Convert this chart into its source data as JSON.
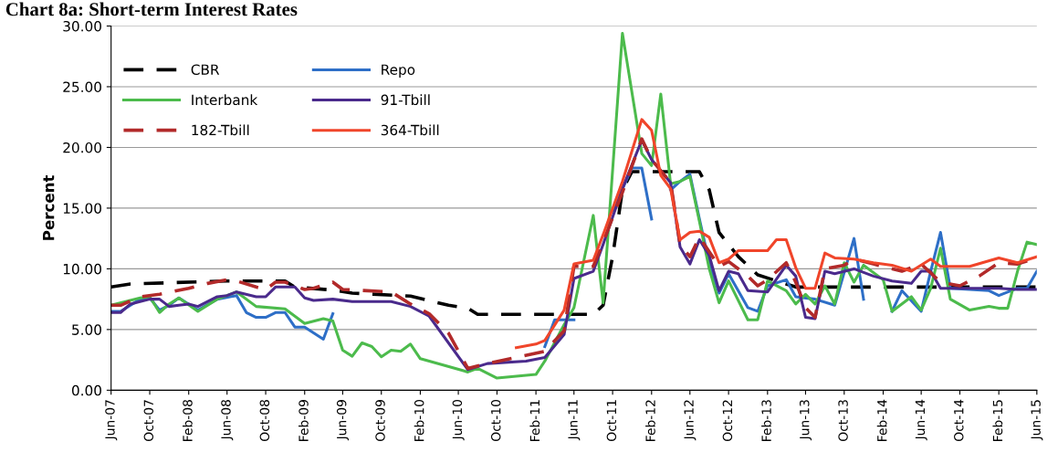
{
  "chart_data": {
    "type": "line",
    "title": "Chart 8a: Short-term Interest Rates",
    "ylabel": "Percent",
    "xlim": [
      "2007-06",
      "2015-06"
    ],
    "xticks": [
      {
        "value": "2007-06",
        "label": "Jun-07"
      },
      {
        "value": "2007-10",
        "label": "Oct-07"
      },
      {
        "value": "2008-02",
        "label": "Feb-08"
      },
      {
        "value": "2008-06",
        "label": "Jun-08"
      },
      {
        "value": "2008-10",
        "label": "Oct-08"
      },
      {
        "value": "2009-02",
        "label": "Feb-09"
      },
      {
        "value": "2009-06",
        "label": "Jun-09"
      },
      {
        "value": "2009-10",
        "label": "Oct-09"
      },
      {
        "value": "2010-02",
        "label": "Feb-10"
      },
      {
        "value": "2010-06",
        "label": "Jun-10"
      },
      {
        "value": "2010-10",
        "label": "Oct-10"
      },
      {
        "value": "2011-02",
        "label": "Feb-11"
      },
      {
        "value": "2011-06",
        "label": "Jun-11"
      },
      {
        "value": "2011-10",
        "label": "Oct-11"
      },
      {
        "value": "2012-02",
        "label": "Feb-12"
      },
      {
        "value": "2012-06",
        "label": "Jun-12"
      },
      {
        "value": "2012-10",
        "label": "Oct-12"
      },
      {
        "value": "2013-02",
        "label": "Feb-13"
      },
      {
        "value": "2013-06",
        "label": "Jun-13"
      },
      {
        "value": "2013-10",
        "label": "Oct-13"
      },
      {
        "value": "2014-02",
        "label": "Feb-14"
      },
      {
        "value": "2014-06",
        "label": "Jun-14"
      },
      {
        "value": "2014-10",
        "label": "Oct-14"
      },
      {
        "value": "2015-02",
        "label": "Feb-15"
      },
      {
        "value": "2015-06",
        "label": "Jun-15"
      }
    ],
    "ylim": [
      0,
      30
    ],
    "yticks": [
      {
        "value": 0,
        "label": "0.00"
      },
      {
        "value": 5,
        "label": "5.00"
      },
      {
        "value": 10,
        "label": "10.00"
      },
      {
        "value": 15,
        "label": "15.00"
      },
      {
        "value": 20,
        "label": "20.00"
      },
      {
        "value": 25,
        "label": "25.00"
      },
      {
        "value": 30,
        "label": "30.00"
      }
    ],
    "grid": "y",
    "legend": "top left",
    "marker": "none",
    "series": [
      {
        "name": "CBR",
        "color": "#000000",
        "line_style": "dashed",
        "x": [
          "2007-06",
          "2007-08",
          "2008-06",
          "2008-12",
          "2009-01",
          "2009-05",
          "2009-07",
          "2010-01",
          "2010-05",
          "2010-07",
          "2010-08",
          "2011-08",
          "2011-09",
          "2011-10",
          "2011-11",
          "2011-12",
          "2012-07",
          "2012-08",
          "2012-09",
          "2012-11",
          "2013-01",
          "2013-05",
          "2015-06"
        ],
        "values": [
          8.5,
          8.75,
          9.0,
          9.0,
          8.5,
          8.25,
          8.0,
          7.75,
          7.0,
          6.75,
          6.25,
          6.25,
          7.0,
          11.0,
          16.5,
          18.0,
          18.0,
          16.5,
          13.0,
          11.0,
          9.5,
          8.5,
          8.5
        ]
      },
      {
        "name": "Repo",
        "color": "#2e6fc7",
        "line_style": "solid",
        "x": [
          "2007-06",
          "2007-07",
          "2007-09",
          "2007-10",
          "2007-11",
          "2007-12",
          "2008-01",
          "2008-03",
          "2008-05",
          "2008-07",
          "2008-08",
          "2008-09",
          "2008-10",
          "2008-11",
          "2008-12",
          "2009-01",
          "2009-02",
          "2009-04",
          "2009-05",
          "2009-06",
          "2011-03",
          "2011-04",
          "2011-06",
          "2011-07",
          "2011-10",
          "2011-12",
          "2012-01",
          "2012-02",
          "2012-03",
          "2012-04",
          "2012-05",
          "2012-06",
          "2012-07",
          "2012-08",
          "2012-09",
          "2012-10",
          "2012-12",
          "2013-01",
          "2013-02",
          "2013-04",
          "2013-05",
          "2013-07",
          "2013-09",
          "2013-11",
          "2013-12",
          "2014-01",
          "2014-03",
          "2014-04",
          "2014-06",
          "2014-07",
          "2014-08",
          "2014-09",
          "2014-11",
          "2015-01",
          "2015-02",
          "2015-04",
          "2015-05",
          "2015-06"
        ],
        "values": [
          6.5,
          6.5,
          7.5,
          7.6,
          6.6,
          7.0,
          7.6,
          6.6,
          7.5,
          7.8,
          6.4,
          6.0,
          6.0,
          6.4,
          6.4,
          5.2,
          5.2,
          4.2,
          6.3,
          null,
          3.6,
          5.8,
          5.8,
          null,
          14.8,
          18.3,
          18.3,
          14.1,
          null,
          16.5,
          17.2,
          17.8,
          14.1,
          10.5,
          8.0,
          9.6,
          6.8,
          6.5,
          8.6,
          9.1,
          7.7,
          7.5,
          7.0,
          12.5,
          7.5,
          null,
          6.5,
          8.2,
          6.5,
          9.8,
          13.0,
          8.4,
          8.3,
          8.2,
          7.8,
          8.4,
          8.4,
          9.8
        ]
      },
      {
        "name": "Interbank",
        "color": "#4cbb4c",
        "line_style": "solid",
        "x": [
          "2007-06",
          "2007-09",
          "2007-10",
          "2007-11",
          "2007-12",
          "2008-01",
          "2008-03",
          "2008-05",
          "2008-07",
          "2008-09",
          "2008-12",
          "2009-02",
          "2009-04",
          "2009-05",
          "2009-06",
          "2009-07",
          "2009-08",
          "2009-09",
          "2009-10",
          "2009-11",
          "2009-12",
          "2010-01",
          "2010-02",
          "2010-07",
          "2010-08",
          "2010-10",
          "2011-02",
          "2011-03",
          "2011-05",
          "2011-06",
          "2011-08",
          "2011-09",
          "2011-11",
          "2012-01",
          "2012-02",
          "2012-03",
          "2012-04",
          "2012-05",
          "2012-06",
          "2012-07",
          "2012-08",
          "2012-09",
          "2012-10",
          "2012-12",
          "2013-01",
          "2013-02",
          "2013-04",
          "2013-05",
          "2013-06",
          "2013-07",
          "2013-08",
          "2013-09",
          "2013-10",
          "2013-11",
          "2013-12",
          "2014-02",
          "2014-03",
          "2014-05",
          "2014-06",
          "2014-07",
          "2014-08",
          "2014-09",
          "2014-11",
          "2015-01",
          "2015-02",
          "2015-03",
          "2015-04",
          "2015-05",
          "2015-06"
        ],
        "values": [
          7.0,
          7.6,
          7.7,
          6.4,
          7.1,
          7.6,
          6.5,
          7.5,
          8.1,
          6.9,
          6.7,
          5.5,
          5.9,
          5.7,
          3.3,
          2.8,
          3.9,
          3.6,
          2.75,
          3.3,
          3.2,
          3.8,
          2.6,
          1.5,
          1.8,
          1.0,
          1.3,
          2.4,
          5.4,
          6.8,
          14.4,
          7.2,
          29.4,
          19.5,
          18.5,
          24.4,
          17.0,
          17.2,
          17.6,
          13.9,
          10.0,
          7.2,
          9.0,
          5.8,
          5.8,
          9.0,
          8.2,
          7.1,
          7.9,
          7.1,
          8.6,
          7.1,
          10.5,
          8.9,
          10.3,
          9.1,
          6.5,
          7.7,
          6.6,
          8.4,
          11.7,
          7.5,
          6.6,
          6.9,
          6.75,
          6.75,
          9.8,
          12.2,
          12.0
        ]
      },
      {
        "name": "91-Tbill",
        "color": "#4a2a8c",
        "line_style": "solid",
        "x": [
          "2007-06",
          "2007-07",
          "2007-08",
          "2007-10",
          "2007-11",
          "2007-12",
          "2008-01",
          "2008-02",
          "2008-03",
          "2008-05",
          "2008-06",
          "2008-07",
          "2008-09",
          "2008-10",
          "2008-11",
          "2009-01",
          "2009-02",
          "2009-03",
          "2009-05",
          "2009-07",
          "2009-11",
          "2010-01",
          "2010-03",
          "2010-07",
          "2010-09",
          "2011-01",
          "2011-03",
          "2011-05",
          "2011-06",
          "2011-08",
          "2011-09",
          "2011-11",
          "2012-01",
          "2012-02",
          "2012-04",
          "2012-05",
          "2012-06",
          "2012-07",
          "2012-08",
          "2012-09",
          "2012-10",
          "2012-11",
          "2012-12",
          "2013-02",
          "2013-04",
          "2013-05",
          "2013-06",
          "2013-07",
          "2013-08",
          "2013-09",
          "2013-11",
          "2014-01",
          "2014-03",
          "2014-05",
          "2014-06",
          "2014-07",
          "2014-08",
          "2014-11",
          "2015-02",
          "2015-04",
          "2015-06"
        ],
        "values": [
          6.4,
          6.4,
          7.1,
          7.5,
          7.5,
          6.9,
          7.0,
          7.1,
          6.9,
          7.7,
          7.8,
          8.1,
          7.7,
          7.7,
          8.5,
          8.5,
          7.6,
          7.4,
          7.5,
          7.3,
          7.3,
          6.9,
          6.1,
          1.7,
          2.2,
          2.4,
          2.7,
          4.6,
          9.2,
          9.8,
          12.0,
          16.6,
          20.6,
          19.0,
          17.1,
          11.8,
          10.4,
          12.4,
          11.1,
          8.2,
          9.8,
          9.6,
          8.2,
          8.1,
          10.3,
          9.4,
          6.0,
          5.9,
          9.8,
          9.6,
          10.0,
          9.4,
          9.0,
          8.8,
          9.8,
          9.8,
          8.4,
          8.4,
          8.4,
          8.3,
          8.3
        ]
      },
      {
        "name": "182-Tbill",
        "color": "#b22a2a",
        "line_style": "dashed",
        "x": [
          "2007-06",
          "2007-07",
          "2007-09",
          "2007-11",
          "2008-02",
          "2008-04",
          "2008-06",
          "2008-07",
          "2008-09",
          "2008-10",
          "2008-11",
          "2008-12",
          "2009-02",
          "2009-03",
          "2009-05",
          "2009-06",
          "2009-11",
          "2010-01",
          "2010-03",
          "2010-05",
          "2010-07",
          "2010-09",
          "2010-12",
          "2011-03",
          "2011-05",
          "2011-06",
          "2011-08",
          "2011-09",
          "2011-11",
          "2012-01",
          "2012-02",
          "2012-04",
          "2012-05",
          "2012-06",
          "2012-07",
          "2012-09",
          "2012-10",
          "2012-12",
          "2013-01",
          "2013-02",
          "2013-04",
          "2013-05",
          "2013-06",
          "2013-07",
          "2013-08",
          "2013-10",
          "2013-11",
          "2014-01",
          "2014-04",
          "2014-06",
          "2014-08",
          "2014-10",
          "2014-12",
          "2015-02",
          "2015-04",
          "2015-06"
        ],
        "values": [
          7.0,
          7.0,
          7.7,
          7.9,
          8.4,
          8.8,
          9.1,
          9.0,
          8.5,
          8.3,
          8.9,
          8.9,
          8.3,
          8.4,
          8.9,
          8.3,
          8.1,
          7.1,
          6.3,
          4.7,
          1.8,
          2.2,
          2.7,
          3.2,
          4.9,
          10.2,
          10.2,
          12.2,
          16.3,
          20.7,
          19.0,
          17.1,
          12.0,
          11.0,
          12.6,
          10.2,
          10.6,
          9.4,
          8.6,
          9.1,
          10.5,
          8.9,
          6.8,
          6.0,
          10.0,
          10.3,
          10.8,
          10.4,
          9.8,
          10.4,
          8.9,
          8.6,
          9.4,
          10.5,
          10.4,
          10.9
        ]
      },
      {
        "name": "364-Tbill",
        "color": "#f0452a",
        "line_style": "solid",
        "x": [
          "2010-12",
          "2011-02",
          "2011-03",
          "2011-05",
          "2011-06",
          "2011-08",
          "2011-09",
          "2011-11",
          "2012-01",
          "2012-02",
          "2012-03",
          "2012-04",
          "2012-05",
          "2012-06",
          "2012-07",
          "2012-08",
          "2012-09",
          "2012-10",
          "2012-11",
          "2012-12",
          "2013-02",
          "2013-03",
          "2013-04",
          "2013-05",
          "2013-06",
          "2013-07",
          "2013-08",
          "2013-09",
          "2013-11",
          "2014-01",
          "2014-03",
          "2014-05",
          "2014-07",
          "2014-08",
          "2014-11",
          "2015-02",
          "2015-04",
          "2015-06"
        ],
        "values": [
          3.5,
          3.8,
          4.1,
          6.6,
          10.4,
          10.7,
          12.8,
          17.2,
          22.3,
          21.4,
          17.7,
          16.6,
          12.4,
          13.0,
          13.1,
          12.6,
          10.5,
          10.8,
          11.5,
          11.5,
          11.5,
          12.4,
          12.4,
          10.1,
          8.4,
          8.4,
          11.3,
          10.9,
          10.8,
          10.5,
          10.3,
          9.8,
          10.8,
          10.2,
          10.2,
          10.9,
          10.5,
          11.0
        ]
      }
    ]
  }
}
